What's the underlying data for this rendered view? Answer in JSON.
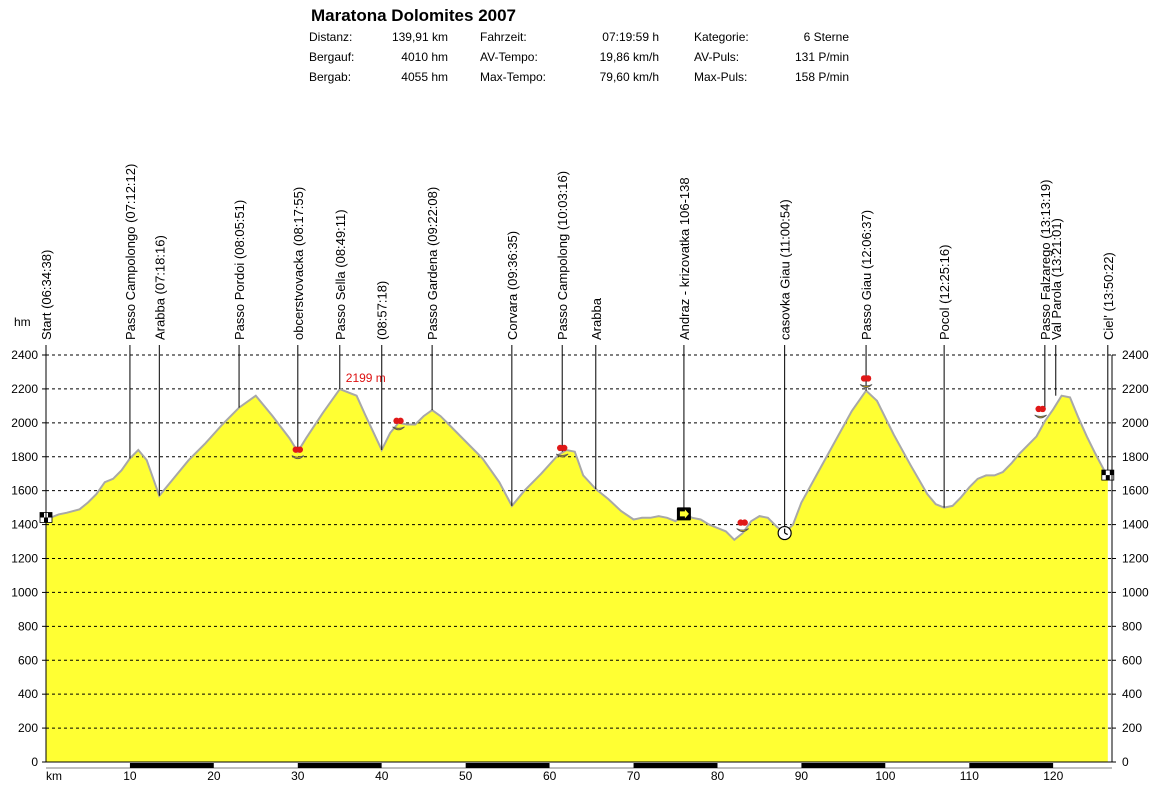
{
  "header": {
    "title": "Maratona Dolomites 2007",
    "col1": [
      {
        "label": "Distanz:",
        "value": "139,91 km"
      },
      {
        "label": "Bergauf:",
        "value": "4010 hm"
      },
      {
        "label": "Bergab:",
        "value": "4055 hm"
      }
    ],
    "col2": [
      {
        "label": "Fahrzeit:",
        "value": "07:19:59 h"
      },
      {
        "label": "AV-Tempo:",
        "value": "19,86 km/h"
      },
      {
        "label": "Max-Tempo:",
        "value": "79,60 km/h"
      }
    ],
    "col3": [
      {
        "label": "Kategorie:",
        "value": "6 Sterne"
      },
      {
        "label": "AV-Puls:",
        "value": "131 P/min"
      },
      {
        "label": "Max-Puls:",
        "value": "158 P/min"
      }
    ]
  },
  "chart_data": {
    "type": "area",
    "title": "Maratona Dolomites 2007",
    "xlabel": "km",
    "ylabel": "hm",
    "xlim": [
      0,
      127
    ],
    "ylim": [
      0,
      2400
    ],
    "x_ticks": [
      10,
      20,
      30,
      40,
      50,
      60,
      70,
      80,
      90,
      100,
      110,
      120
    ],
    "y_ticks": [
      0,
      200,
      400,
      600,
      800,
      1000,
      1200,
      1400,
      1600,
      1800,
      2000,
      2200,
      2400
    ],
    "grid": true,
    "fill_color": "#ffff33",
    "line_color": "#a8a8a8",
    "peak_label": {
      "text": "2199 m",
      "x": 35,
      "y": 2199
    },
    "profile": {
      "x": [
        0,
        1.5,
        2.5,
        4,
        5,
        6,
        7,
        8,
        9,
        10,
        11,
        12,
        13.5,
        15,
        17,
        19,
        21,
        23,
        25,
        27,
        29,
        30,
        31,
        33,
        35,
        37,
        38,
        40,
        41,
        42,
        43,
        44,
        45,
        46,
        47,
        48,
        50,
        52,
        54,
        55.5,
        57,
        59,
        61,
        62,
        63,
        64,
        65.5,
        67,
        68.5,
        70,
        71,
        72,
        73,
        74,
        75,
        76,
        77,
        78,
        79,
        80,
        81,
        82,
        83,
        84,
        85,
        86,
        87,
        88,
        89,
        90,
        92,
        94,
        96,
        97.7,
        99,
        101,
        103,
        105,
        106,
        107,
        108,
        109,
        110,
        111,
        112,
        113,
        114,
        115,
        116,
        117,
        118,
        119,
        120,
        121,
        122,
        123,
        124,
        125,
        126.5
      ],
      "y": [
        1430,
        1460,
        1470,
        1490,
        1530,
        1580,
        1650,
        1670,
        1720,
        1790,
        1840,
        1780,
        1570,
        1660,
        1780,
        1880,
        1990,
        2090,
        2160,
        2040,
        1910,
        1830,
        1910,
        2060,
        2199,
        2160,
        2050,
        1840,
        1940,
        2000,
        1990,
        1990,
        2040,
        2075,
        2040,
        1990,
        1890,
        1790,
        1650,
        1510,
        1600,
        1700,
        1810,
        1840,
        1830,
        1690,
        1610,
        1550,
        1480,
        1430,
        1440,
        1440,
        1450,
        1440,
        1420,
        1460,
        1440,
        1430,
        1400,
        1380,
        1360,
        1310,
        1350,
        1420,
        1450,
        1440,
        1390,
        1350,
        1400,
        1530,
        1710,
        1890,
        2070,
        2190,
        2130,
        1930,
        1750,
        1580,
        1520,
        1500,
        1510,
        1560,
        1620,
        1670,
        1690,
        1690,
        1710,
        1760,
        1820,
        1870,
        1920,
        2010,
        2080,
        2160,
        2150,
        2030,
        1920,
        1820,
        1680
      ]
    },
    "waypoints": [
      {
        "label": "Start (06:34:38)",
        "x": 0,
        "y": 1430
      },
      {
        "label": "Passo Campolongo (07:12:12)",
        "x": 10,
        "y": 1790
      },
      {
        "label": "Arabba (07:18:16)",
        "x": 13.5,
        "y": 1570
      },
      {
        "label": "Passo Pordoi (08:05:51)",
        "x": 23,
        "y": 2090
      },
      {
        "label": "obcerstvovacka (08:17:55)",
        "x": 30,
        "y": 1830
      },
      {
        "label": "Passo Sella (08:49:11)",
        "x": 35,
        "y": 2199
      },
      {
        "label": "(08:57:18)",
        "x": 40,
        "y": 1840
      },
      {
        "label": "Passo Gardena (09:22:08)",
        "x": 46,
        "y": 2075
      },
      {
        "label": "Corvara (09:36:35)",
        "x": 55.5,
        "y": 1510
      },
      {
        "label": "Passo Campolong (10:03:16)",
        "x": 61.5,
        "y": 1830
      },
      {
        "label": "Arabba",
        "x": 65.5,
        "y": 1610
      },
      {
        "label": "Andraz - krizovatka 106-138",
        "x": 76,
        "y": 1460
      },
      {
        "label": "casovka Giau (11:00:54)",
        "x": 88,
        "y": 1350
      },
      {
        "label": "Passo Giau (12:06:37)",
        "x": 97.7,
        "y": 2190
      },
      {
        "label": "Pocol (12:25:16)",
        "x": 107,
        "y": 1500
      },
      {
        "label": "Passo Falzarego (13:13:19)",
        "x": 119,
        "y": 2080
      },
      {
        "label": "Val Parola (13:21:01)",
        "x": 120.3,
        "y": 2160
      },
      {
        "label": "Ciel' (13:50:22)",
        "x": 126.5,
        "y": 1680
      }
    ],
    "icons": [
      {
        "name": "finish-flag-icon",
        "x": 0,
        "y": 1430
      },
      {
        "name": "refreshment-icon",
        "x": 30,
        "y": 1830
      },
      {
        "name": "refreshment-icon",
        "x": 42,
        "y": 2000
      },
      {
        "name": "refreshment-icon",
        "x": 61.5,
        "y": 1840
      },
      {
        "name": "direction-sign-icon",
        "x": 76,
        "y": 1460
      },
      {
        "name": "refreshment-icon",
        "x": 83,
        "y": 1400
      },
      {
        "name": "stopwatch-icon",
        "x": 88,
        "y": 1350
      },
      {
        "name": "refreshment-icon",
        "x": 97.7,
        "y": 2250
      },
      {
        "name": "refreshment-icon",
        "x": 118.5,
        "y": 2070
      },
      {
        "name": "finish-flag-icon",
        "x": 126.5,
        "y": 1680
      }
    ]
  }
}
